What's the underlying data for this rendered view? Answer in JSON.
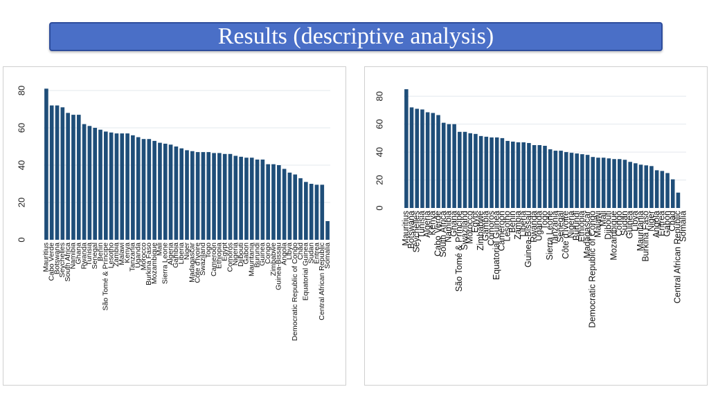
{
  "slide": {
    "title": "Results (descriptive analysis)"
  },
  "colors": {
    "bar": "#1f4e79",
    "title_bar": "#4a6fc7",
    "grid": "#e3e8ee"
  },
  "chart_data": [
    {
      "type": "bar",
      "ylim": [
        0,
        80
      ],
      "yticks": [
        0,
        20,
        40,
        60,
        80
      ],
      "grid": true,
      "categories": [
        "Mauritius",
        "Cabo Verde",
        "Botswana",
        "Seychelles",
        "South Africa",
        "Namibia",
        "Ghana",
        "Rwanda",
        "Tunisia",
        "Senegal",
        "Benin",
        "São Tomé & Príncipe",
        "Lesotho",
        "Zambia",
        "Malawi",
        "Kenya",
        "Tanzania",
        "Uganda",
        "Morocco",
        "Burkina Faso",
        "Mozambique",
        "Mali",
        "Sierra Leone",
        "Algeria",
        "Gambia",
        "Liberia",
        "Niger",
        "Madagascar",
        "Côte d'Ivoire",
        "Swaziland",
        "Togo",
        "Cameroon",
        "Ethiopia",
        "Egypt",
        "Comoros",
        "Nigeria",
        "Djibouti",
        "Gabon",
        "Mauritania",
        "Burundi",
        "Guinea",
        "Congo",
        "Zimbabwe",
        "Guinea-Bissau",
        "Angola",
        "Libya",
        "Democratic Republic of Congo",
        "Chad",
        "Equatorial Guinea",
        "Sudan",
        "Eritrea",
        "Central African Republic",
        "Somalia"
      ],
      "values": [
        81,
        72,
        72,
        71,
        68,
        67,
        67,
        62,
        61,
        60,
        59,
        58,
        57.5,
        57,
        57,
        57,
        56,
        55,
        54,
        54,
        53,
        52,
        51.5,
        51,
        50,
        49,
        48,
        47.5,
        47,
        47,
        47,
        46.5,
        46.5,
        46,
        46,
        45,
        44.5,
        44,
        44,
        43,
        43,
        40.5,
        40.5,
        40,
        38,
        36,
        35,
        33,
        31,
        30,
        29.5,
        29.5,
        10
      ]
    },
    {
      "type": "bar",
      "ylim": [
        0,
        90
      ],
      "yticks": [
        0,
        20,
        40,
        60,
        80
      ],
      "grid": true,
      "categories": [
        "Mauritius",
        "Botswana",
        "Seychelles",
        "Tunisia",
        "Algeria",
        "Kenya",
        "Cabo Verde",
        "South Africa",
        "Namibia",
        "Ghana",
        "São Tomé & Príncipe",
        "Swaziland",
        "Morocco",
        "Egypt",
        "Zimbabwe",
        "Gambia",
        "Comoros",
        "Equatorial Guinea",
        "Cameroon",
        "Lesotho",
        "Benin",
        "Zambia",
        "Liberia",
        "Guinea-Bissau",
        "Rwanda",
        "Uganda",
        "Togo",
        "Sierra Leone",
        "Tanzania",
        "Senegal",
        "Côte d'Ivoire",
        "Nigeria",
        "Burundi",
        "Ethiopia",
        "Madagascar",
        "Democratic Republic of Congo",
        "Malawi",
        "Mali",
        "Djibouti",
        "Mozambique",
        "Congo",
        "Sudan",
        "Guinea",
        "Libya",
        "Mauritania",
        "Burkina Faso",
        "Niger",
        "Angola",
        "Eritrea",
        "Gabon",
        "Chad",
        "Central African Republic",
        "Somalia"
      ],
      "values": [
        85,
        72,
        71,
        70.5,
        68.5,
        68,
        66.5,
        61,
        60,
        60,
        54.5,
        54.5,
        53.5,
        53,
        51.5,
        51,
        50.5,
        50.5,
        50,
        48,
        47.5,
        47,
        47,
        46.5,
        45,
        45,
        44.5,
        42,
        41,
        41,
        40,
        39.5,
        39,
        38.5,
        38,
        36.5,
        36,
        36,
        35.5,
        35,
        35,
        34.5,
        33,
        32,
        31,
        30.5,
        30,
        27,
        26.5,
        25,
        20.5,
        11,
        0
      ]
    }
  ]
}
